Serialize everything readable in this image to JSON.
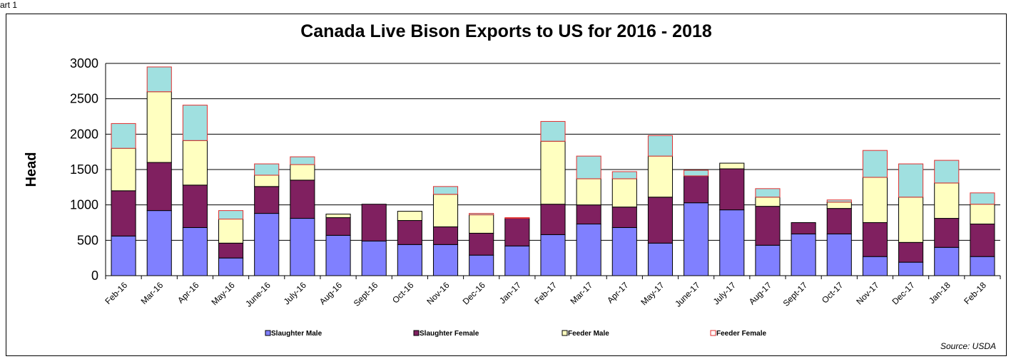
{
  "corner_label": "art 1",
  "source": "Source: USDA",
  "chart_data": {
    "type": "bar",
    "stacked": true,
    "title": "Canada Live Bison Exports to US for 2016 - 2018",
    "xlabel": "",
    "ylabel": "Head",
    "ylim": [
      0,
      3000
    ],
    "yticks": [
      0,
      500,
      1000,
      1500,
      2000,
      2500,
      3000
    ],
    "grid": true,
    "legend_position": "bottom",
    "categories": [
      "Feb-16",
      "Mar-16",
      "Apr-16",
      "May-16",
      "June-16",
      "July-16",
      "Aug-16",
      "Sept-16",
      "Oct-16",
      "Nov-16",
      "Dec-16",
      "Jan-17",
      "Feb-17",
      "Mar-17",
      "Apr-17",
      "May-17",
      "June-17",
      "July-17",
      "Aug-17",
      "Sept-17",
      "Oct-17",
      "Nov-17",
      "Dec-17",
      "Jan-18",
      "Feb-18"
    ],
    "series": [
      {
        "name": "Slaughter Male",
        "color": "#8080FF",
        "values": [
          560,
          920,
          680,
          250,
          880,
          810,
          570,
          490,
          440,
          440,
          290,
          420,
          580,
          730,
          680,
          460,
          1030,
          930,
          430,
          590,
          590,
          270,
          190,
          400,
          270
        ]
      },
      {
        "name": "Slaughter Female",
        "color": "#802060",
        "values": [
          640,
          680,
          600,
          210,
          380,
          540,
          250,
          520,
          340,
          250,
          310,
          390,
          430,
          270,
          290,
          650,
          380,
          580,
          550,
          160,
          360,
          480,
          280,
          410,
          460
        ]
      },
      {
        "name": "Feeder Male",
        "color": "#FFFFC0",
        "values": [
          600,
          1000,
          630,
          340,
          160,
          220,
          50,
          0,
          130,
          460,
          260,
          0,
          890,
          370,
          400,
          580,
          0,
          80,
          130,
          0,
          90,
          640,
          640,
          500,
          280
        ]
      },
      {
        "name": "Feeder Female",
        "color": "#A0E0E0",
        "edge_color": "#E03030",
        "values": [
          350,
          350,
          500,
          120,
          160,
          110,
          0,
          0,
          0,
          110,
          20,
          10,
          280,
          320,
          100,
          290,
          80,
          0,
          120,
          0,
          30,
          380,
          470,
          320,
          160
        ]
      }
    ]
  }
}
